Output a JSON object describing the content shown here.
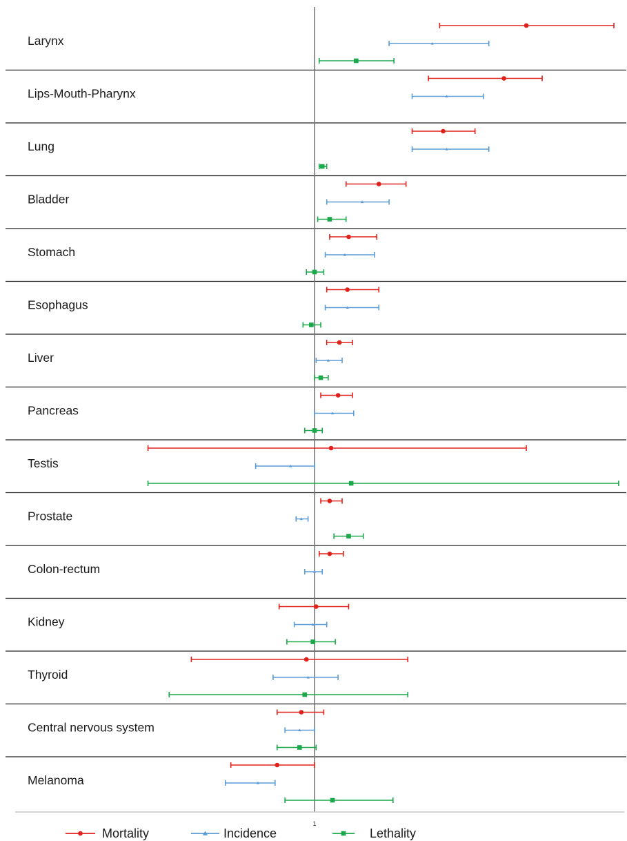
{
  "chart_data": {
    "type": "forest",
    "x_scale": "log",
    "reference_line": 1,
    "x_tick_labels": [
      "1"
    ],
    "colors": {
      "Mortality": "#e0201b",
      "Incidence": "#5b9bd5",
      "Lethality": "#1aa84a"
    },
    "legend": {
      "position": "bottom",
      "entries": [
        {
          "series": "Mortality",
          "label": "Mortality",
          "marker": "circle"
        },
        {
          "series": "Incidence",
          "label": "Incidence",
          "marker": "triangle"
        },
        {
          "series": "Lethality",
          "label": "Lethality",
          "marker": "square"
        }
      ]
    },
    "categories": [
      {
        "label": "Larynx",
        "Mortality": {
          "est": 3.8,
          "lo": 2.2,
          "hi": 6.6
        },
        "Incidence": {
          "est": 2.1,
          "lo": 1.6,
          "hi": 3.0
        },
        "Lethality": {
          "est": 1.3,
          "lo": 1.03,
          "hi": 1.65
        }
      },
      {
        "label": "Lips-Mouth-Pharynx",
        "Mortality": {
          "est": 3.3,
          "lo": 2.05,
          "hi": 4.2
        },
        "Incidence": {
          "est": 2.3,
          "lo": 1.85,
          "hi": 2.9
        }
      },
      {
        "label": "Lung",
        "Mortality": {
          "est": 2.25,
          "lo": 1.85,
          "hi": 2.75
        },
        "Incidence": {
          "est": 2.3,
          "lo": 1.85,
          "hi": 3.0
        },
        "Lethality": {
          "est": 1.05,
          "lo": 1.03,
          "hi": 1.08
        }
      },
      {
        "label": "Bladder",
        "Mortality": {
          "est": 1.5,
          "lo": 1.22,
          "hi": 1.78
        },
        "Incidence": {
          "est": 1.35,
          "lo": 1.08,
          "hi": 1.6
        },
        "Lethality": {
          "est": 1.1,
          "lo": 1.02,
          "hi": 1.22
        }
      },
      {
        "label": "Stomach",
        "Mortality": {
          "est": 1.24,
          "lo": 1.1,
          "hi": 1.48
        },
        "Incidence": {
          "est": 1.21,
          "lo": 1.07,
          "hi": 1.46
        },
        "Lethality": {
          "est": 1.0,
          "lo": 0.95,
          "hi": 1.06
        }
      },
      {
        "label": "Esophagus",
        "Mortality": {
          "est": 1.23,
          "lo": 1.08,
          "hi": 1.5
        },
        "Incidence": {
          "est": 1.23,
          "lo": 1.07,
          "hi": 1.5
        },
        "Lethality": {
          "est": 0.98,
          "lo": 0.93,
          "hi": 1.04
        }
      },
      {
        "label": "Liver",
        "Mortality": {
          "est": 1.17,
          "lo": 1.08,
          "hi": 1.27
        },
        "Incidence": {
          "est": 1.09,
          "lo": 1.01,
          "hi": 1.19
        },
        "Lethality": {
          "est": 1.04,
          "lo": 1.0,
          "hi": 1.09
        }
      },
      {
        "label": "Pancreas",
        "Mortality": {
          "est": 1.16,
          "lo": 1.04,
          "hi": 1.27
        },
        "Incidence": {
          "est": 1.12,
          "lo": 1.0,
          "hi": 1.28
        },
        "Lethality": {
          "est": 1.0,
          "lo": 0.94,
          "hi": 1.05
        }
      },
      {
        "label": "Testis",
        "Mortality": {
          "est": 1.11,
          "lo": 0.35,
          "hi": 3.8
        },
        "Incidence": {
          "est": 0.86,
          "lo": 0.69,
          "hi": 1.0
        },
        "Lethality": {
          "est": 1.26,
          "lo": 0.35,
          "hi": 6.8
        }
      },
      {
        "label": "Prostate",
        "Mortality": {
          "est": 1.1,
          "lo": 1.04,
          "hi": 1.19
        },
        "Incidence": {
          "est": 0.92,
          "lo": 0.89,
          "hi": 0.96
        },
        "Lethality": {
          "est": 1.24,
          "lo": 1.13,
          "hi": 1.36
        }
      },
      {
        "label": "Colon-rectum",
        "Mortality": {
          "est": 1.1,
          "lo": 1.03,
          "hi": 1.2
        },
        "Incidence": {
          "est": 1.0,
          "lo": 0.94,
          "hi": 1.05
        }
      },
      {
        "label": "Kidney",
        "Mortality": {
          "est": 1.01,
          "lo": 0.8,
          "hi": 1.24
        },
        "Incidence": {
          "est": 0.99,
          "lo": 0.88,
          "hi": 1.08
        },
        "Lethality": {
          "est": 0.99,
          "lo": 0.84,
          "hi": 1.14
        }
      },
      {
        "label": "Thyroid",
        "Mortality": {
          "est": 0.95,
          "lo": 0.46,
          "hi": 1.8
        },
        "Incidence": {
          "est": 0.96,
          "lo": 0.77,
          "hi": 1.16
        },
        "Lethality": {
          "est": 0.94,
          "lo": 0.4,
          "hi": 1.8
        }
      },
      {
        "label": "Central nervous system",
        "Mortality": {
          "est": 0.92,
          "lo": 0.79,
          "hi": 1.06
        },
        "Incidence": {
          "est": 0.91,
          "lo": 0.83,
          "hi": 1.0
        },
        "Lethality": {
          "est": 0.91,
          "lo": 0.79,
          "hi": 1.01
        }
      },
      {
        "label": "Melanoma",
        "Mortality": {
          "est": 0.79,
          "lo": 0.59,
          "hi": 1.0
        },
        "Incidence": {
          "est": 0.7,
          "lo": 0.57,
          "hi": 0.78
        },
        "Lethality": {
          "est": 1.12,
          "lo": 0.83,
          "hi": 1.64
        }
      }
    ]
  }
}
